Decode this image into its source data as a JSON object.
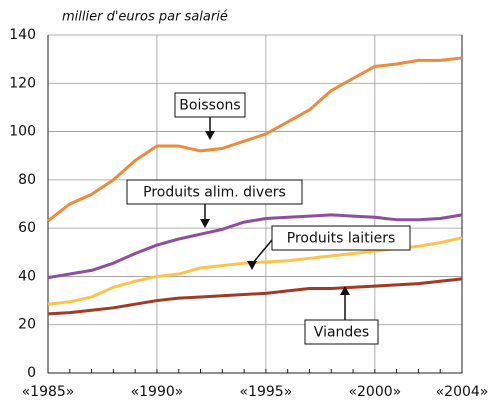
{
  "chart_data": {
    "type": "line",
    "y_label": "millier d'euros par salarié",
    "x": [
      1985,
      1986,
      1987,
      1988,
      1989,
      1990,
      1991,
      1992,
      1993,
      1994,
      1995,
      1996,
      1997,
      1998,
      1999,
      2000,
      2001,
      2002,
      2003,
      2004
    ],
    "series": [
      {
        "name": "Boissons",
        "color": "#f08a3c",
        "values": [
          63,
          70,
          74,
          80,
          88,
          94,
          94,
          92,
          93,
          96,
          99,
          104,
          109,
          117,
          122,
          127,
          128,
          129.5,
          129.5,
          130.5
        ]
      },
      {
        "name": "Produits alim. divers",
        "color": "#8e4f9e",
        "values": [
          39.5,
          41,
          42.5,
          45.5,
          49.5,
          53,
          55.5,
          57.5,
          59.5,
          62.5,
          64,
          64.5,
          65,
          65.5,
          65,
          64.5,
          63.5,
          63.5,
          64,
          65.5
        ]
      },
      {
        "name": "Produits laitiers",
        "color": "#fcc44c",
        "values": [
          28.5,
          29.5,
          31.5,
          35.5,
          38,
          40,
          41,
          43.5,
          44.5,
          45.5,
          46,
          46.5,
          47.5,
          48.5,
          49.5,
          50.5,
          51.5,
          52.5,
          54,
          56
        ]
      },
      {
        "name": "Viandes",
        "color": "#a33a24",
        "values": [
          24.5,
          25,
          26,
          27,
          28.5,
          30,
          31,
          31.5,
          32,
          32.5,
          33,
          34,
          35,
          35,
          35.5,
          36,
          36.5,
          37,
          38,
          39
        ]
      }
    ],
    "xlim": [
      1985,
      2004
    ],
    "xticks": [
      {
        "value": 1985,
        "label": "«1985»"
      },
      {
        "value": 1990,
        "label": "«1990»"
      },
      {
        "value": 1995,
        "label": "«1995»"
      },
      {
        "value": 2000,
        "label": "«2000»"
      },
      {
        "value": 2004,
        "label": "«2004»"
      }
    ],
    "ylim": [
      0,
      140
    ],
    "yticks": [
      0,
      20,
      40,
      60,
      80,
      100,
      120,
      140
    ],
    "grid": true
  }
}
